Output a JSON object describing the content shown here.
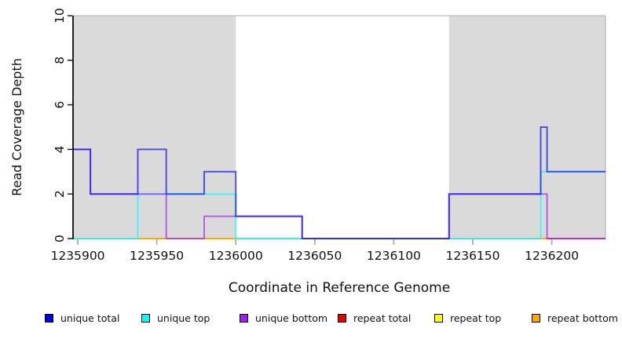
{
  "figure": {
    "background": "#ffffff",
    "plot_bg_shade": "#dadada",
    "box_color": "#bdbdbd",
    "axis_color": "#000000",
    "x_tick_color": "#a3a3a3",
    "y_tick_color": "#1a1a1a"
  },
  "chart_data": {
    "type": "line",
    "subtype": "step-post-coverage",
    "title": "",
    "xlabel": "Coordinate in Reference Genome",
    "ylabel": "Read Coverage Depth",
    "xlim": [
      1235897,
      1236234
    ],
    "ylim": [
      0,
      10
    ],
    "grid": false,
    "legend_position": "bottom",
    "x_ticks": [
      "1235900",
      "1235950",
      "1236000",
      "1236050",
      "1236100",
      "1236150",
      "1236200"
    ],
    "x_tick_values": [
      1235900,
      1235950,
      1236000,
      1236050,
      1236100,
      1236150,
      1236200
    ],
    "y_ticks": [
      "0",
      "2",
      "4",
      "6",
      "8",
      "10"
    ],
    "y_tick_values": [
      0,
      2,
      4,
      6,
      8,
      10
    ],
    "shaded_regions": [
      {
        "from": 1235897,
        "to": 1236000,
        "color": "#dadada"
      },
      {
        "from": 1236135,
        "to": 1236234,
        "color": "#dadada"
      }
    ],
    "series": [
      {
        "name": "repeat total",
        "color": "#EE0000",
        "opacity": 0.9,
        "steps": [
          [
            1235897,
            0
          ]
        ]
      },
      {
        "name": "repeat top",
        "color": "#FFFF00",
        "opacity": 0.9,
        "steps": [
          [
            1235897,
            0
          ]
        ]
      },
      {
        "name": "repeat bottom",
        "color": "#FFA500",
        "opacity": 0.9,
        "steps": [
          [
            1235897,
            0
          ]
        ]
      },
      {
        "name": "unique top",
        "color": "#00FFFF",
        "opacity": 0.65,
        "steps": [
          [
            1235897,
            0
          ],
          [
            1235938,
            2
          ],
          [
            1236000,
            0
          ],
          [
            1236193,
            3
          ]
        ]
      },
      {
        "name": "unique bottom",
        "color": "#A020F0",
        "opacity": 0.65,
        "steps": [
          [
            1235897,
            4
          ],
          [
            1235908,
            2
          ],
          [
            1235956,
            0
          ],
          [
            1235980,
            1
          ],
          [
            1236042,
            0
          ],
          [
            1236135,
            2
          ],
          [
            1236197,
            0
          ]
        ]
      },
      {
        "name": "unique total",
        "color": "#1414EE",
        "opacity": 0.7,
        "steps": [
          [
            1235897,
            4
          ],
          [
            1235908,
            2
          ],
          [
            1235938,
            4
          ],
          [
            1235956,
            2
          ],
          [
            1235980,
            3
          ],
          [
            1236000,
            1
          ],
          [
            1236042,
            0
          ],
          [
            1236135,
            2
          ],
          [
            1236193,
            5
          ],
          [
            1236197,
            3
          ]
        ]
      }
    ],
    "baseline_overlap_segments": [
      {
        "from": 1235897,
        "to": 1235938,
        "color": "#8FD89B"
      },
      {
        "from": 1235938,
        "to": 1235956,
        "color": "#FFA500"
      },
      {
        "from": 1235956,
        "to": 1235980,
        "color": "#FFA500"
      },
      {
        "from": 1235980,
        "to": 1236000,
        "color": "#FFA500"
      },
      {
        "from": 1236000,
        "to": 1236042,
        "color": "#8FD89B"
      },
      {
        "from": 1236042,
        "to": 1236135,
        "color": "#C0A8F0"
      },
      {
        "from": 1236135,
        "to": 1236193,
        "color": "#8FD89B"
      },
      {
        "from": 1236193,
        "to": 1236197,
        "color": "#FFA500"
      },
      {
        "from": 1236197,
        "to": 1236234,
        "color": "#E0406E"
      }
    ]
  },
  "legend": {
    "items": [
      {
        "label": "unique total",
        "color": "#0000EE"
      },
      {
        "label": "unique top",
        "color": "#00FFFF"
      },
      {
        "label": "unique bottom",
        "color": "#A020F0"
      },
      {
        "label": "repeat total",
        "color": "#EE0000"
      },
      {
        "label": "repeat top",
        "color": "#FFFF00"
      },
      {
        "label": "repeat bottom",
        "color": "#FFA500"
      }
    ]
  }
}
